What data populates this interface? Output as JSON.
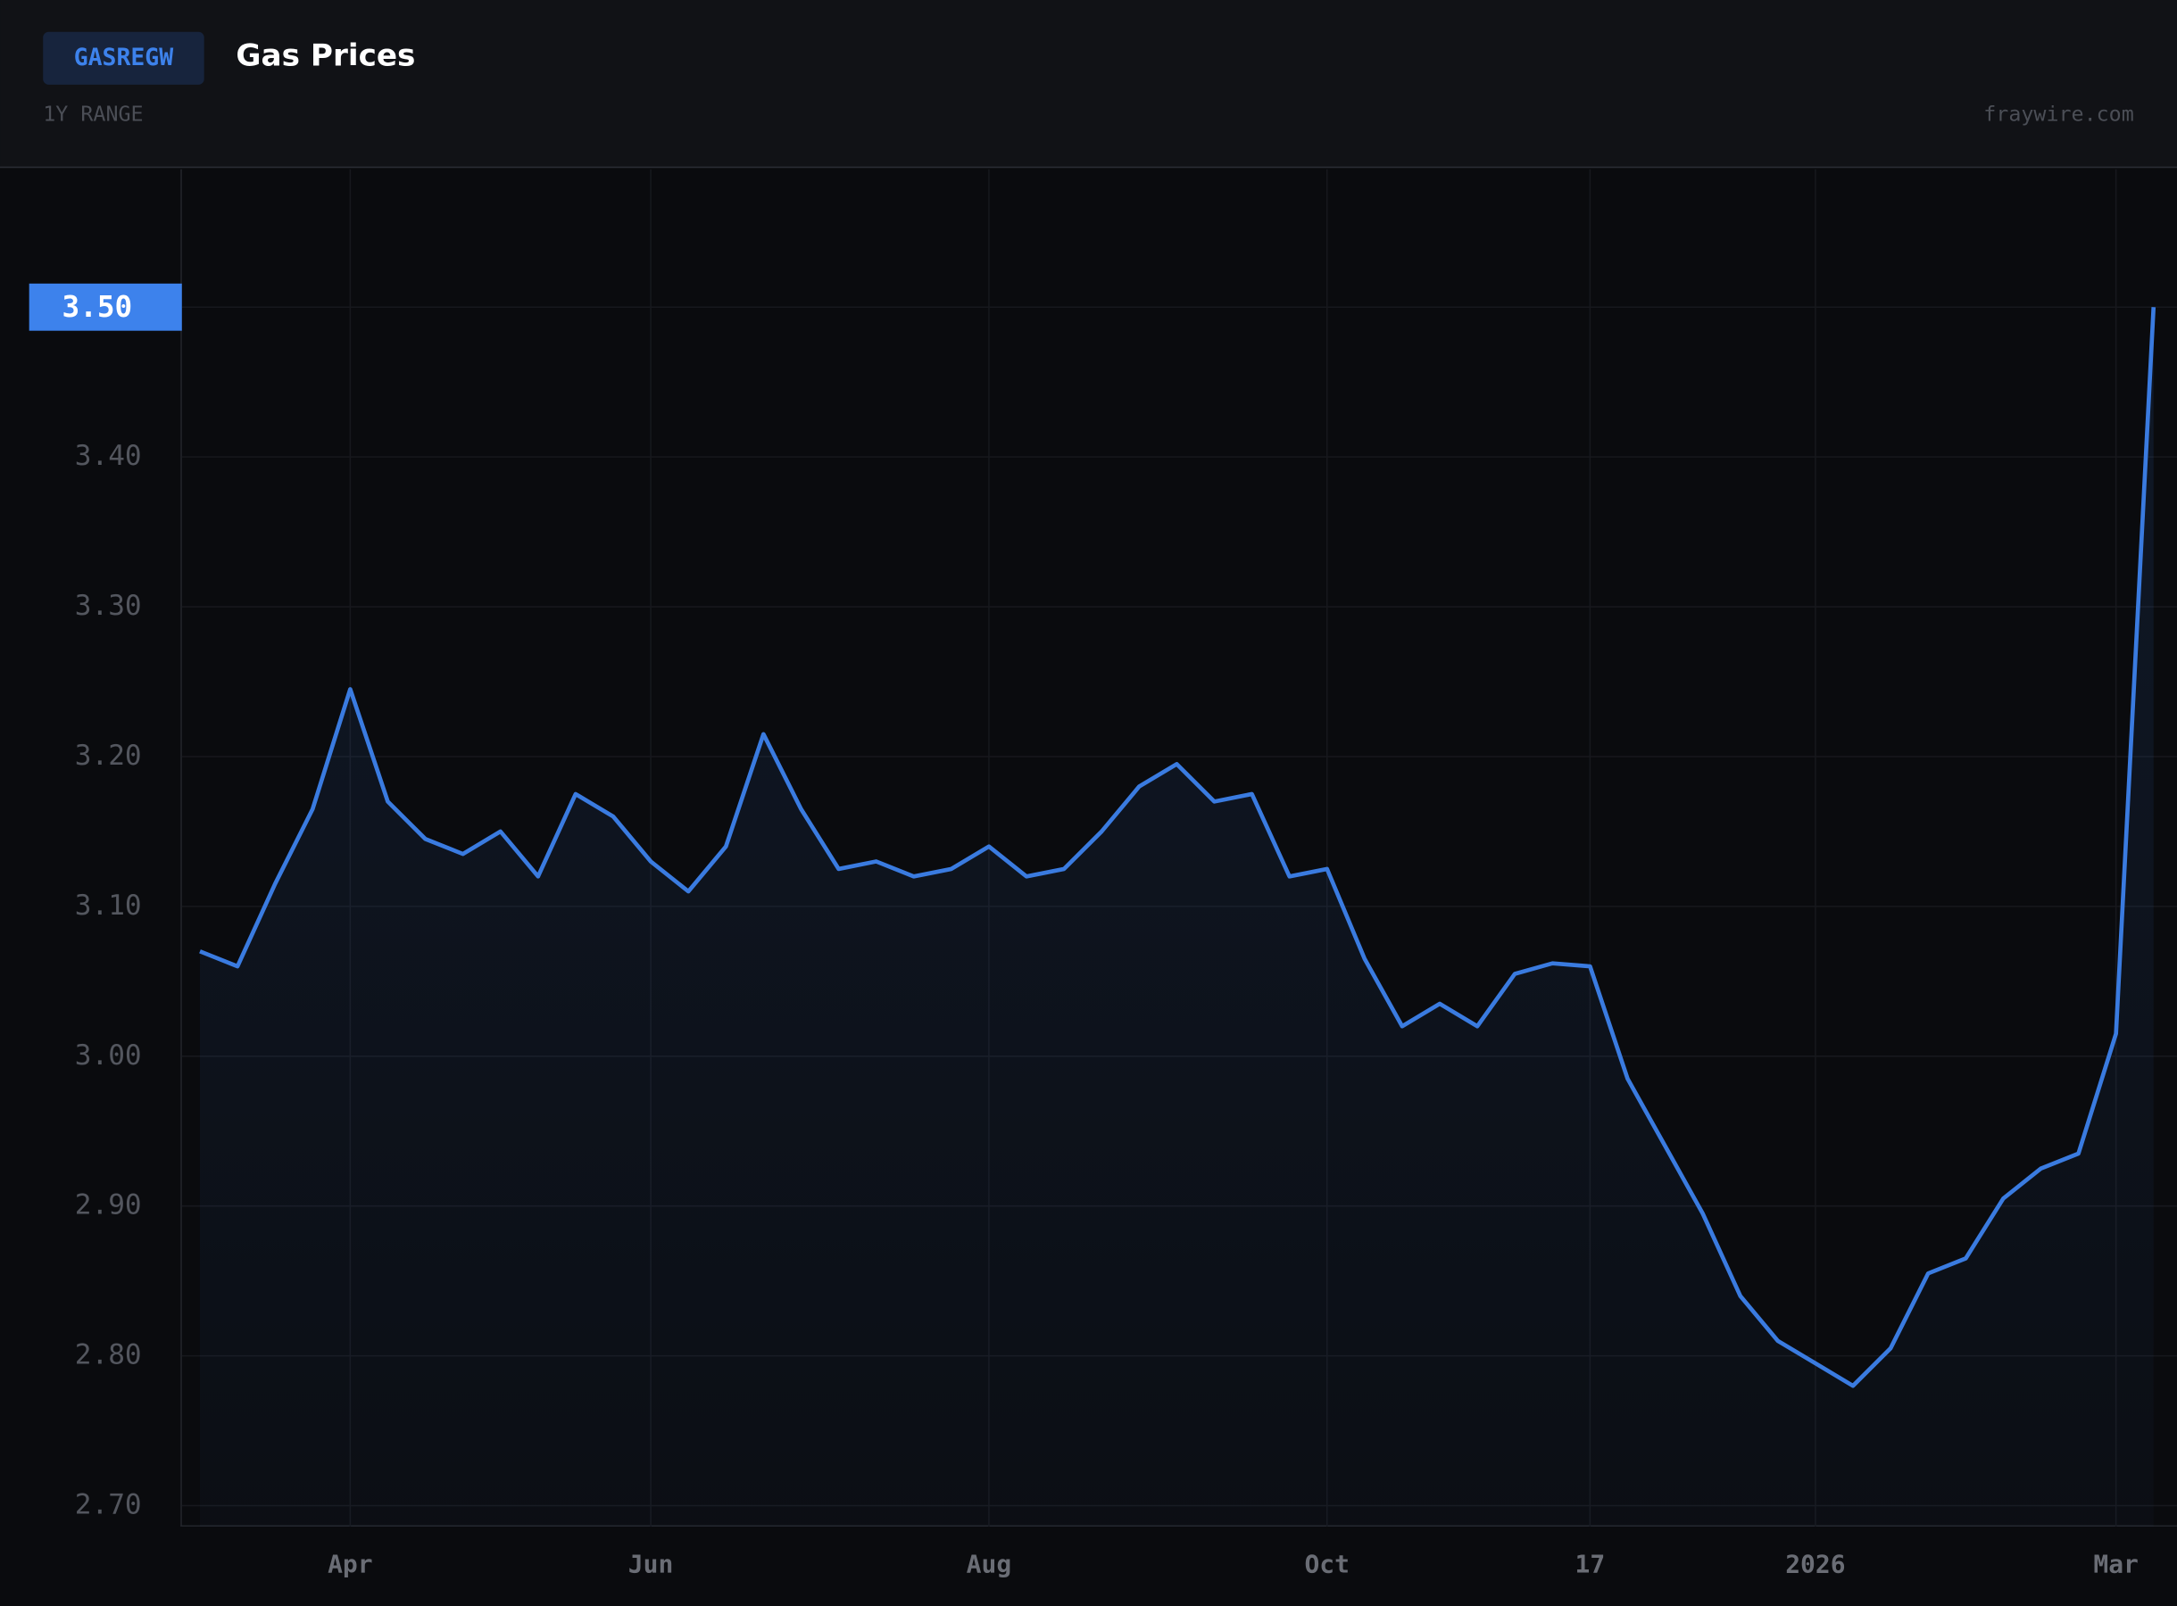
{
  "header": {
    "symbol": "GASREGW",
    "title": "Gas Prices",
    "range": "1Y RANGE",
    "source": "fraywire.com"
  },
  "chart_data": {
    "type": "line",
    "current_label": "3.50",
    "categories": [
      null,
      null,
      null,
      null,
      "Apr",
      null,
      null,
      null,
      null,
      null,
      null,
      null,
      "Jun",
      null,
      null,
      null,
      null,
      null,
      null,
      null,
      null,
      "Aug",
      null,
      null,
      null,
      null,
      null,
      null,
      null,
      null,
      "Oct",
      null,
      null,
      null,
      null,
      null,
      null,
      "17",
      null,
      null,
      null,
      null,
      null,
      "2026",
      null,
      null,
      null,
      null,
      null,
      null,
      null,
      "Mar",
      null
    ],
    "series": [
      {
        "name": "GASREGW",
        "color": "#3a7be0",
        "values": [
          3.07,
          3.06,
          3.115,
          3.165,
          3.245,
          3.17,
          3.145,
          3.135,
          3.15,
          3.12,
          3.175,
          3.16,
          3.13,
          3.11,
          3.14,
          3.215,
          3.165,
          3.125,
          3.13,
          3.12,
          3.125,
          3.14,
          3.12,
          3.125,
          3.15,
          3.18,
          3.195,
          3.17,
          3.175,
          3.12,
          3.125,
          3.065,
          3.02,
          3.035,
          3.02,
          3.055,
          3.062,
          3.06,
          2.985,
          2.94,
          2.895,
          2.84,
          2.81,
          2.795,
          2.78,
          2.805,
          2.855,
          2.865,
          2.905,
          2.925,
          2.935,
          3.015,
          3.5
        ]
      }
    ],
    "ylim": [
      2.686,
      3.592
    ],
    "yticks": [
      {
        "value": 2.7,
        "label": "2.70"
      },
      {
        "value": 2.8,
        "label": "2.80"
      },
      {
        "value": 2.9,
        "label": "2.90"
      },
      {
        "value": 3.0,
        "label": "3.00"
      },
      {
        "value": 3.1,
        "label": "3.10"
      },
      {
        "value": 3.2,
        "label": "3.20"
      },
      {
        "value": 3.3,
        "label": "3.30"
      },
      {
        "value": 3.4,
        "label": "3.40"
      },
      {
        "value": 3.5,
        "label": "3.50"
      }
    ],
    "grid": true
  }
}
